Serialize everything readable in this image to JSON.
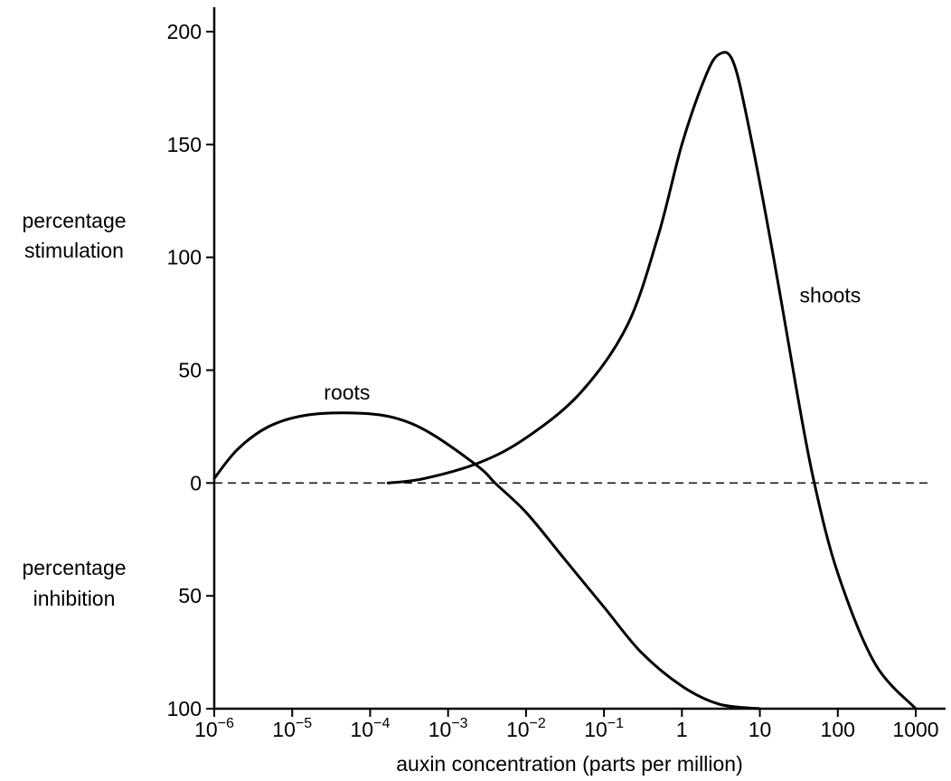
{
  "chart_data": {
    "type": "line",
    "xlabel": "auxin concentration (parts per million)",
    "x_scale": "log",
    "xlim": [
      1e-06,
      1000
    ],
    "x_ticks": [
      {
        "value": 1e-06,
        "base": "10",
        "exp": "−6"
      },
      {
        "value": 1e-05,
        "base": "10",
        "exp": "−5"
      },
      {
        "value": 0.0001,
        "base": "10",
        "exp": "−4"
      },
      {
        "value": 0.001,
        "base": "10",
        "exp": "−3"
      },
      {
        "value": 0.01,
        "base": "10",
        "exp": "−2"
      },
      {
        "value": 0.1,
        "base": "10",
        "exp": "−1"
      },
      {
        "value": 1,
        "base": "1",
        "exp": ""
      },
      {
        "value": 10,
        "base": "10",
        "exp": ""
      },
      {
        "value": 100,
        "base": "100",
        "exp": ""
      },
      {
        "value": 1000,
        "base": "1000",
        "exp": ""
      }
    ],
    "ylabel_top": [
      "percentage",
      "stimulation"
    ],
    "ylabel_bottom": [
      "percentage",
      "inhibition"
    ],
    "ylim": [
      -100,
      200
    ],
    "y_ticks": [
      {
        "value": 200,
        "label": "200"
      },
      {
        "value": 150,
        "label": "150"
      },
      {
        "value": 100,
        "label": "100"
      },
      {
        "value": 50,
        "label": "50"
      },
      {
        "value": 0,
        "label": "0"
      },
      {
        "value": -50,
        "label": "50"
      },
      {
        "value": -100,
        "label": "100"
      }
    ],
    "zero_line": "dashed",
    "grid": false,
    "series": [
      {
        "name": "roots",
        "points": [
          [
            1e-06,
            2
          ],
          [
            2e-06,
            15
          ],
          [
            5e-06,
            25
          ],
          [
            1.5e-05,
            30
          ],
          [
            6e-05,
            31
          ],
          [
            0.0002,
            29
          ],
          [
            0.0006,
            22
          ],
          [
            0.0025,
            7
          ],
          [
            0.004,
            0
          ],
          [
            0.01,
            -13
          ],
          [
            0.03,
            -33
          ],
          [
            0.1,
            -55
          ],
          [
            0.3,
            -75
          ],
          [
            1,
            -90
          ],
          [
            3,
            -98
          ],
          [
            10,
            -100
          ]
        ]
      },
      {
        "name": "shoots",
        "points": [
          [
            0.00017,
            0
          ],
          [
            0.0005,
            2
          ],
          [
            0.0025,
            9
          ],
          [
            0.01,
            20
          ],
          [
            0.05,
            40
          ],
          [
            0.2,
            70
          ],
          [
            0.5,
            110
          ],
          [
            1,
            150
          ],
          [
            2,
            180
          ],
          [
            3,
            190
          ],
          [
            4.5,
            187
          ],
          [
            7,
            160
          ],
          [
            15,
            100
          ],
          [
            30,
            40
          ],
          [
            50,
            0
          ],
          [
            100,
            -40
          ],
          [
            300,
            -80
          ],
          [
            1000,
            -100
          ]
        ]
      }
    ],
    "annotations": [
      {
        "text": "roots",
        "x": 0.0001,
        "y": 37
      },
      {
        "text": "shoots",
        "x": 80,
        "y": 80
      }
    ]
  }
}
